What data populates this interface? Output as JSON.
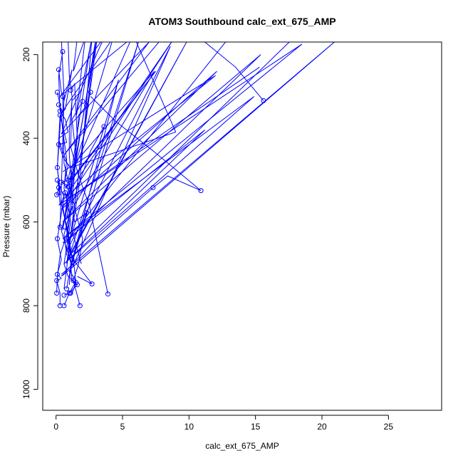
{
  "chart_data": {
    "type": "line",
    "title": "ATOM3 Southbound calc_ext_675_AMP",
    "xlabel": "calc_ext_675_AMP",
    "ylabel": "Pressure (mbar)",
    "xlim": [
      -1,
      29
    ],
    "ylim": [
      1050,
      170
    ],
    "y_reversed": true,
    "x_ticks": [
      0,
      5,
      10,
      15,
      20,
      25
    ],
    "y_ticks": [
      200,
      400,
      600,
      800,
      1000
    ],
    "series_color": "#0000ff",
    "grid": false,
    "legend": "none",
    "series": [
      {
        "points": [
          [
            0.2,
            236
          ],
          [
            0.4,
            290
          ],
          [
            0.6,
            310
          ],
          [
            1.2,
            236
          ],
          [
            0.9,
            290
          ],
          [
            0.7,
            330
          ],
          [
            0.3,
            345
          ],
          [
            0.8,
            410
          ],
          [
            0.2,
            415
          ],
          [
            0.6,
            450
          ],
          [
            1.1,
            470
          ],
          [
            0.9,
            500
          ],
          [
            0.4,
            505
          ],
          [
            1.0,
            515
          ],
          [
            1.3,
            540
          ],
          [
            0.5,
            560
          ],
          [
            0.7,
            600
          ],
          [
            1.0,
            640
          ],
          [
            1.2,
            690
          ],
          [
            1.1,
            720
          ],
          [
            1.5,
            742
          ],
          [
            1.0,
            770
          ],
          [
            0.6,
            800
          ]
        ],
        "marker_points": [
          [
            0.2,
            236
          ],
          [
            0.3,
            345
          ],
          [
            0.2,
            415
          ],
          [
            0.4,
            505
          ],
          [
            1.0,
            515
          ],
          [
            1.0,
            770
          ],
          [
            0.6,
            800
          ]
        ]
      },
      {
        "points": [
          [
            0.1,
            290
          ],
          [
            0.3,
            320
          ],
          [
            0.5,
            380
          ],
          [
            0.8,
            450
          ],
          [
            0.6,
            520
          ],
          [
            0.9,
            560
          ],
          [
            0.4,
            620
          ],
          [
            0.8,
            665
          ],
          [
            1.2,
            700
          ],
          [
            0.9,
            740
          ],
          [
            0.8,
            760
          ]
        ],
        "marker_points": [
          [
            0.1,
            290
          ],
          [
            0.8,
            760
          ]
        ]
      },
      {
        "points": [
          [
            0.2,
            320
          ],
          [
            0.4,
            330
          ],
          [
            0.1,
            470
          ],
          [
            0.3,
            530
          ],
          [
            0.1,
            500
          ],
          [
            0.6,
            540
          ],
          [
            0.1,
            640
          ],
          [
            0.4,
            690
          ],
          [
            0.1,
            725
          ],
          [
            0.4,
            735
          ],
          [
            0.05,
            740
          ],
          [
            0.3,
            770
          ],
          [
            0.3,
            800
          ]
        ],
        "marker_points": [
          [
            0.2,
            320
          ],
          [
            0.1,
            470
          ],
          [
            0.1,
            500
          ],
          [
            0.1,
            640
          ],
          [
            0.1,
            725
          ],
          [
            0.05,
            740
          ],
          [
            0.3,
            800
          ]
        ]
      },
      {
        "points": [
          [
            0.5,
            193
          ],
          [
            0.2,
            250
          ],
          [
            0.3,
            335
          ],
          [
            0.7,
            355
          ],
          [
            0.9,
            385
          ],
          [
            0.2,
            400
          ],
          [
            0.3,
            415
          ],
          [
            0.9,
            465
          ],
          [
            0.6,
            510
          ],
          [
            1.0,
            527
          ],
          [
            0.4,
            555
          ],
          [
            0.6,
            585
          ],
          [
            0.9,
            620
          ],
          [
            0.3,
            680
          ],
          [
            0.1,
            730
          ],
          [
            0.05,
            770
          ]
        ],
        "marker_points": [
          [
            0.5,
            193
          ],
          [
            0.3,
            335
          ],
          [
            0.05,
            770
          ]
        ]
      },
      {
        "points": [
          [
            0.3,
            345
          ],
          [
            0.1,
            470
          ],
          [
            0.2,
            500
          ],
          [
            0.3,
            535
          ],
          [
            0.05,
            535
          ],
          [
            0.2,
            518
          ],
          [
            0.3,
            560
          ],
          [
            0.7,
            530
          ],
          [
            0.9,
            560
          ],
          [
            1.1,
            600
          ],
          [
            0.8,
            660
          ],
          [
            0.6,
            700
          ],
          [
            0.9,
            730
          ],
          [
            1.3,
            740
          ]
        ],
        "marker_points": [
          [
            0.05,
            535
          ],
          [
            0.2,
            518
          ],
          [
            0.7,
            530
          ],
          [
            1.3,
            740
          ]
        ]
      },
      {
        "points": [
          [
            0.5,
            300
          ],
          [
            0.6,
            460
          ],
          [
            0.9,
            500
          ],
          [
            1.1,
            530
          ],
          [
            0.8,
            540
          ],
          [
            0.7,
            600
          ],
          [
            1.0,
            660
          ],
          [
            1.1,
            700
          ],
          [
            1.2,
            740
          ],
          [
            1.6,
            750
          ],
          [
            1.0,
            770
          ],
          [
            0.6,
            775
          ]
        ],
        "marker_points": [
          [
            0.5,
            300
          ],
          [
            0.9,
            500
          ],
          [
            1.6,
            750
          ],
          [
            1.0,
            770
          ],
          [
            0.6,
            775
          ]
        ]
      },
      {
        "points": [
          [
            1.8,
            290
          ],
          [
            1.2,
            310
          ],
          [
            1.0,
            380
          ],
          [
            1.0,
            440
          ],
          [
            1.2,
            520
          ],
          [
            1.0,
            580
          ],
          [
            0.8,
            640
          ],
          [
            1.3,
            690
          ],
          [
            1.5,
            745
          ],
          [
            1.2,
            770
          ],
          [
            1.1,
            770
          ]
        ],
        "marker_points": [
          [
            1.2,
            690
          ],
          [
            1.5,
            745
          ],
          [
            1.1,
            770
          ]
        ]
      },
      {
        "points": [
          [
            1.1,
            285
          ],
          [
            1.4,
            270
          ],
          [
            1.6,
            400
          ],
          [
            1.1,
            520
          ],
          [
            1.5,
            580
          ],
          [
            2.0,
            640
          ],
          [
            1.7,
            700
          ],
          [
            1.3,
            740
          ],
          [
            1.8,
            800
          ]
        ],
        "marker_points": [
          [
            1.1,
            285
          ],
          [
            1.8,
            800
          ]
        ]
      },
      {
        "points": [
          [
            2.0,
            312
          ],
          [
            1.2,
            355
          ],
          [
            1.5,
            440
          ],
          [
            1.2,
            560
          ],
          [
            0.9,
            620
          ],
          [
            1.1,
            700
          ],
          [
            1.0,
            750
          ]
        ],
        "marker_points": [
          [
            2.0,
            312
          ]
        ]
      },
      {
        "points": [
          [
            2.6,
            290
          ],
          [
            2.3,
            322
          ],
          [
            1.7,
            345
          ],
          [
            1.4,
            475
          ],
          [
            1.1,
            540
          ],
          [
            1.4,
            600
          ],
          [
            2.3,
            578
          ],
          [
            1.6,
            650
          ],
          [
            1.3,
            690
          ],
          [
            2.7,
            748
          ],
          [
            1.6,
            730
          ]
        ],
        "marker_points": [
          [
            2.6,
            290
          ],
          [
            2.3,
            322
          ],
          [
            2.3,
            578
          ],
          [
            2.7,
            748
          ]
        ]
      },
      {
        "points": [
          [
            0.9,
            160
          ],
          [
            1.0,
            250
          ],
          [
            1.2,
            300
          ],
          [
            1.1,
            420
          ],
          [
            1.7,
            490
          ],
          [
            2.5,
            560
          ],
          [
            3.9,
            772
          ]
        ],
        "marker_points": [
          [
            3.9,
            772
          ]
        ]
      },
      {
        "points": [
          [
            3.6,
            372
          ],
          [
            2.6,
            430
          ],
          [
            1.6,
            520
          ],
          [
            1.2,
            560
          ],
          [
            0.6,
            630
          ],
          [
            0.8,
            680
          ]
        ],
        "marker_points": [
          [
            3.6,
            372
          ]
        ]
      },
      {
        "points": [
          [
            0.4,
            160
          ],
          [
            0.6,
            300
          ],
          [
            0.4,
            520
          ],
          [
            0.3,
            612
          ],
          [
            0.9,
            620
          ],
          [
            1.1,
            680
          ]
        ],
        "marker_points": [
          [
            0.3,
            612
          ]
        ]
      },
      {
        "points": [
          [
            2.6,
            300
          ],
          [
            4.5,
            360
          ],
          [
            7.3,
            430
          ],
          [
            10.9,
            525
          ],
          [
            8.4,
            490
          ],
          [
            7.3,
            518
          ],
          [
            3.0,
            640
          ],
          [
            0.4,
            730
          ]
        ],
        "marker_points": [
          [
            10.9,
            525
          ],
          [
            7.3,
            518
          ]
        ]
      },
      {
        "points": [
          [
            11.0,
            165
          ],
          [
            13.5,
            230
          ],
          [
            15.6,
            310
          ]
        ],
        "marker_points": [
          [
            15.6,
            310
          ]
        ]
      },
      {
        "points": [
          [
            21.3,
            160
          ],
          [
            0.4,
            725
          ],
          [
            21.3,
            160
          ],
          [
            0.5,
            728
          ]
        ],
        "marker_points": []
      },
      {
        "points": [
          [
            17.7,
            165
          ],
          [
            1.0,
            680
          ],
          [
            9.9,
            165
          ],
          [
            0.9,
            690
          ]
        ],
        "marker_points": []
      },
      {
        "points": [
          [
            13.0,
            160
          ],
          [
            0.7,
            650
          ],
          [
            15.4,
            200
          ],
          [
            0.5,
            600
          ],
          [
            12.1,
            240
          ],
          [
            0.4,
            570
          ],
          [
            8.9,
            160
          ],
          [
            0.7,
            540
          ],
          [
            12.0,
            250
          ],
          [
            0.5,
            480
          ]
        ],
        "marker_points": []
      },
      {
        "points": [
          [
            8.0,
            160
          ],
          [
            0.6,
            440
          ],
          [
            7.0,
            170
          ],
          [
            0.4,
            390
          ],
          [
            3.6,
            160
          ],
          [
            0.3,
            300
          ],
          [
            5.7,
            160
          ],
          [
            0.7,
            520
          ],
          [
            7.5,
            240
          ],
          [
            1.1,
            500
          ],
          [
            4.3,
            160
          ],
          [
            0.4,
            340
          ]
        ],
        "marker_points": []
      },
      {
        "points": [
          [
            2.6,
            175
          ],
          [
            0.5,
            620
          ],
          [
            3.1,
            160
          ],
          [
            0.8,
            700
          ],
          [
            6.2,
            170
          ],
          [
            1.0,
            720
          ],
          [
            4.7,
            260
          ],
          [
            0.8,
            670
          ],
          [
            8.6,
            180
          ],
          [
            1.2,
            710
          ]
        ],
        "marker_points": []
      },
      {
        "points": [
          [
            15.3,
            230
          ],
          [
            0.2,
            560
          ],
          [
            18.5,
            175
          ],
          [
            0.5,
            640
          ],
          [
            14.9,
            300
          ],
          [
            0.6,
            700
          ],
          [
            11.2,
            380
          ],
          [
            0.5,
            650
          ]
        ],
        "marker_points": []
      },
      {
        "points": [
          [
            5.9,
            160
          ],
          [
            9.0,
            385
          ],
          [
            1.1,
            470
          ],
          [
            7.4,
            240
          ],
          [
            0.8,
            590
          ],
          [
            3.0,
            160
          ],
          [
            0.6,
            760
          ]
        ],
        "marker_points": []
      },
      {
        "points": [
          [
            1.6,
            160
          ],
          [
            1.3,
            240
          ],
          [
            2.2,
            160
          ],
          [
            1.5,
            350
          ],
          [
            2.7,
            160
          ],
          [
            1.8,
            500
          ],
          [
            1.2,
            620
          ],
          [
            1.9,
            700
          ]
        ],
        "marker_points": []
      }
    ]
  }
}
